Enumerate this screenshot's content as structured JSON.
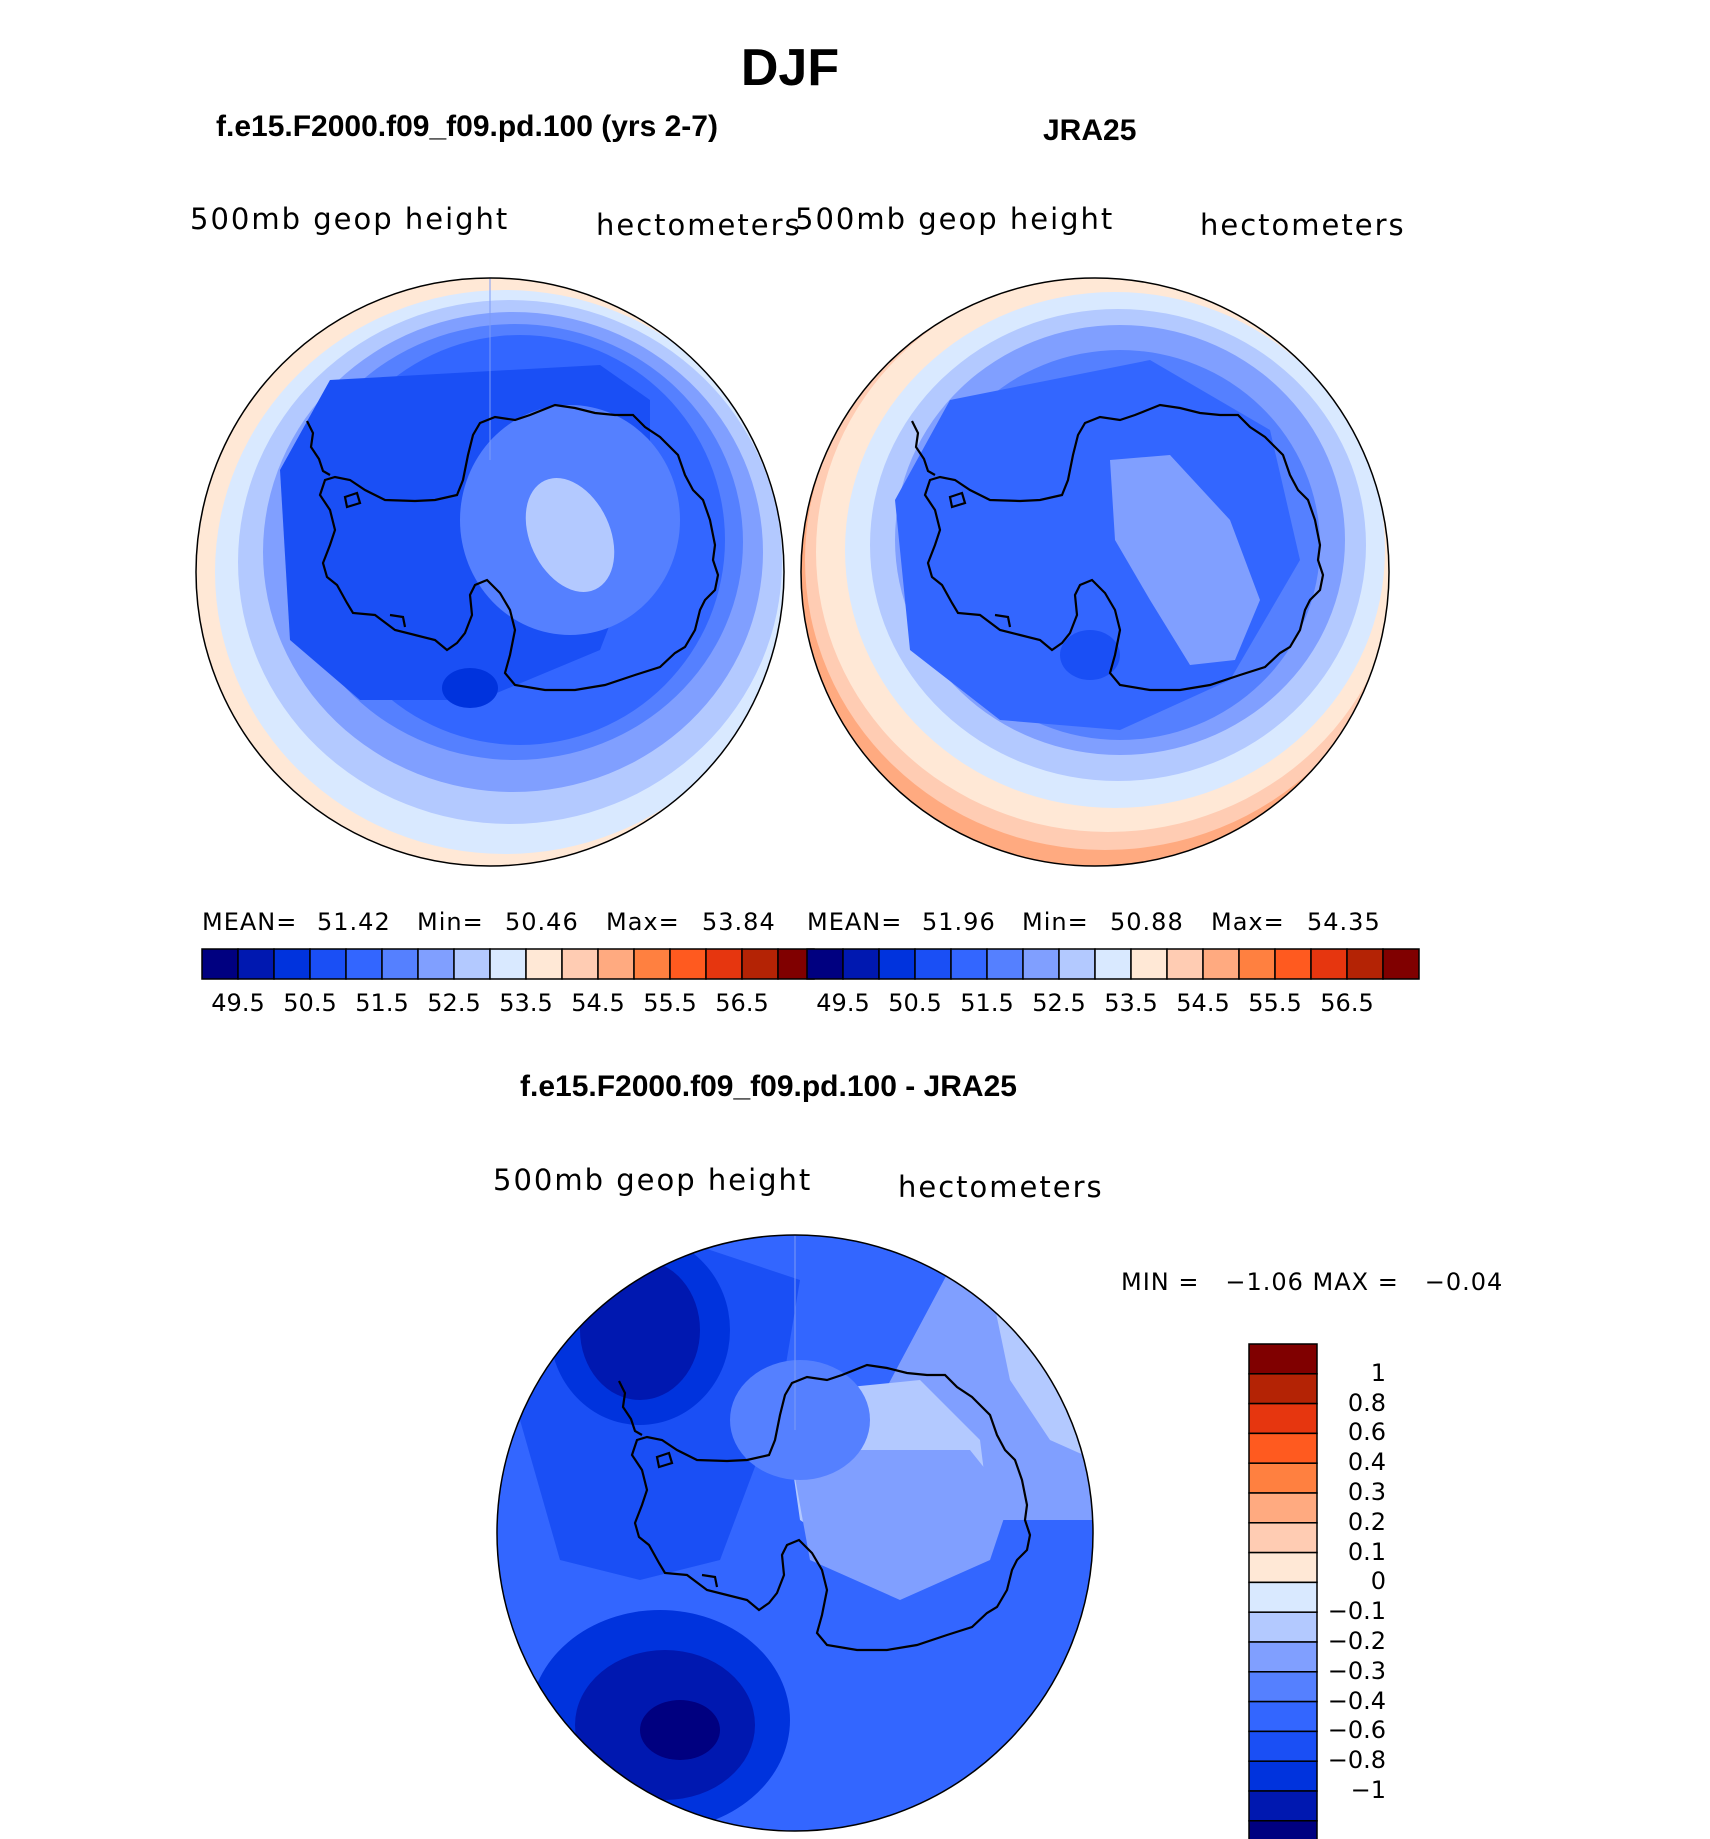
{
  "title": "DJF",
  "colors": {
    "coast": "#000000",
    "seq_levels": [
      "#000080",
      "#0018b0",
      "#0033dd",
      "#1a4ff5",
      "#3366ff",
      "#5580ff",
      "#809fff",
      "#b3c9ff",
      "#d9e9ff",
      "#ffe8d6",
      "#ffccb3",
      "#ffaa80",
      "#ff8040",
      "#ff5a1f",
      "#e6360f",
      "#b42305",
      "#800000"
    ],
    "diff_levels": [
      "#000080",
      "#0018b0",
      "#0033dd",
      "#1a4ff5",
      "#3366ff",
      "#5580ff",
      "#809fff",
      "#b3c9ff",
      "#d9e9ff",
      "#ffe8d6",
      "#ffccb3",
      "#ffaa80",
      "#ff8040",
      "#ff5a1f",
      "#e6360f",
      "#b42305",
      "#800000"
    ]
  },
  "panels": [
    {
      "subtitle": "f.e15.F2000.f09_f09.pd.100 (yrs 2-7)",
      "field_label": "500mb geop height",
      "units_label": "hectometers",
      "stats": {
        "mean_label": "MEAN=",
        "mean": "51.42",
        "min_label": "Min=",
        "min": "50.46",
        "max_label": "Max=",
        "max": "53.84"
      },
      "colorbar_ticks": [
        "49.5",
        "50.5",
        "51.5",
        "52.5",
        "53.5",
        "54.5",
        "55.5",
        "56.5"
      ]
    },
    {
      "subtitle": "JRA25",
      "field_label": "500mb geop height",
      "units_label": "hectometers",
      "stats": {
        "mean_label": "MEAN=",
        "mean": "51.96",
        "min_label": "Min=",
        "min": "50.88",
        "max_label": "Max=",
        "max": "54.35"
      },
      "colorbar_ticks": [
        "49.5",
        "50.5",
        "51.5",
        "52.5",
        "53.5",
        "54.5",
        "55.5",
        "56.5"
      ]
    }
  ],
  "difference": {
    "subtitle": "f.e15.F2000.f09_f09.pd.100 - JRA25",
    "field_label": "500mb geop height",
    "units_label": "hectometers",
    "minmax_text": "MIN =   −1.06 MAX =   −0.04",
    "colorbar_ticks": [
      "1",
      "0.8",
      "0.6",
      "0.4",
      "0.3",
      "0.2",
      "0.1",
      "0",
      "−0.1",
      "−0.2",
      "−0.3",
      "−0.4",
      "−0.6",
      "−0.8",
      "−1"
    ]
  }
}
